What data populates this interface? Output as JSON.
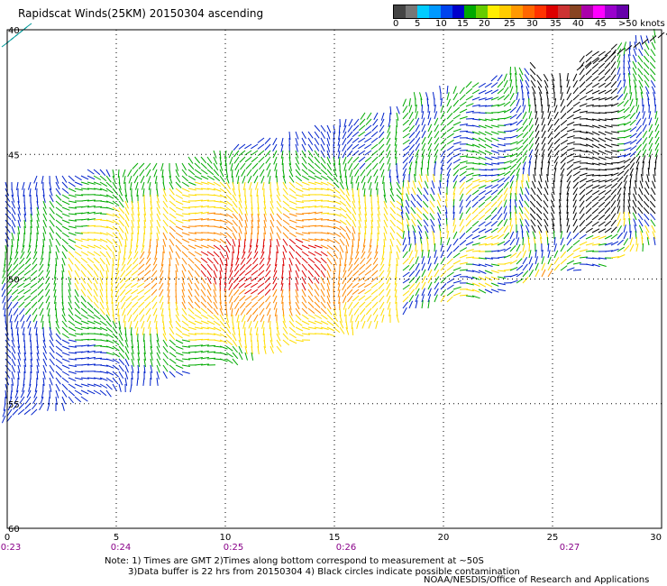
{
  "title": "Rapidscat Winds(25KM) 20150304 ascending",
  "colorbar": {
    "colors": [
      "#444444",
      "#777777",
      "#00ccff",
      "#0099ff",
      "#0044ee",
      "#0000cc",
      "#00aa00",
      "#66cc00",
      "#ffee00",
      "#ffcc00",
      "#ff9900",
      "#ff6600",
      "#ff3300",
      "#dd0000",
      "#cc3333",
      "#884422",
      "#aa00aa",
      "#ff00ff",
      "#9900cc",
      "#6600aa"
    ],
    "labels": [
      "0",
      "5",
      "10",
      "15",
      "20",
      "25",
      "30",
      "35",
      "40",
      "45",
      ">50 knots"
    ]
  },
  "lat_labels": [
    "40",
    "45",
    "50",
    "55",
    "60"
  ],
  "lon_labels": [
    "0",
    "5",
    "10",
    "15",
    "20",
    "25",
    "30"
  ],
  "time_labels": [
    "0:23",
    "0:24",
    "0:25",
    "0:26",
    "0:27"
  ],
  "notes": {
    "line1": "Note: 1) Times are GMT 2)Times along bottom correspond to measurement at ~50S",
    "line2": "3)Data buffer is 22 hrs from 20150304 4) Black circles indicate possible contamination"
  },
  "credit": "NOAA/NESDIS/Office of Research and Applications",
  "speed_colors": {
    "low": "#0022cc",
    "mid_low": "#00aa00",
    "mid": "#ffdd00",
    "high": "#ff8800",
    "peak": "#dd0000",
    "contaminated": "#000000"
  }
}
